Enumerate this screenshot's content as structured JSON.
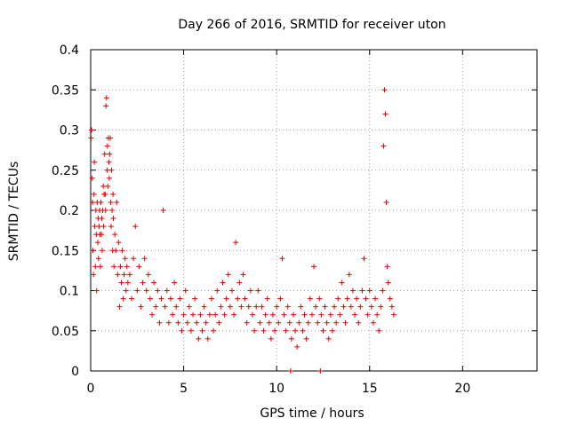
{
  "chart_data": {
    "type": "scatter",
    "title": "Day 266 of 2016, SRMTID for receiver uton",
    "xlabel": "GPS time / hours",
    "ylabel": "SRMTID / TECUs",
    "xlim": [
      0,
      24
    ],
    "ylim": [
      0,
      0.4
    ],
    "xticks": [
      0,
      5,
      10,
      15,
      20
    ],
    "xtick_labels": [
      "0",
      "5",
      "10",
      "15",
      "20"
    ],
    "yticks": [
      0,
      0.05,
      0.1,
      0.15,
      0.2,
      0.25,
      0.3,
      0.35,
      0.4
    ],
    "ytick_labels": [
      "0",
      "0.05",
      "0.1",
      "0.15",
      "0.2",
      "0.25",
      "0.3",
      "0.35",
      "0.4"
    ],
    "grid": true,
    "marker": "+",
    "color": "#e00000",
    "series": [
      {
        "name": "SRMTID",
        "points": [
          [
            0.02,
            0.29
          ],
          [
            0.05,
            0.3
          ],
          [
            0.08,
            0.24
          ],
          [
            0.1,
            0.21
          ],
          [
            0.12,
            0.15
          ],
          [
            0.15,
            0.12
          ],
          [
            0.18,
            0.22
          ],
          [
            0.2,
            0.26
          ],
          [
            0.22,
            0.18
          ],
          [
            0.25,
            0.13
          ],
          [
            0.28,
            0.2
          ],
          [
            0.3,
            0.17
          ],
          [
            0.32,
            0.1
          ],
          [
            0.35,
            0.21
          ],
          [
            0.38,
            0.16
          ],
          [
            0.4,
            0.19
          ],
          [
            0.42,
            0.14
          ],
          [
            0.45,
            0.18
          ],
          [
            0.48,
            0.2
          ],
          [
            0.5,
            0.17
          ],
          [
            0.52,
            0.13
          ],
          [
            0.55,
            0.21
          ],
          [
            0.58,
            0.17
          ],
          [
            0.6,
            0.19
          ],
          [
            0.62,
            0.15
          ],
          [
            0.65,
            0.2
          ],
          [
            0.68,
            0.23
          ],
          [
            0.7,
            0.18
          ],
          [
            0.72,
            0.22
          ],
          [
            0.75,
            0.27
          ],
          [
            0.78,
            0.22
          ],
          [
            0.8,
            0.2
          ],
          [
            0.82,
            0.33
          ],
          [
            0.85,
            0.34
          ],
          [
            0.88,
            0.25
          ],
          [
            0.9,
            0.28
          ],
          [
            0.92,
            0.23
          ],
          [
            0.95,
            0.29
          ],
          [
            0.98,
            0.26
          ],
          [
            1.0,
            0.24
          ],
          [
            1.02,
            0.27
          ],
          [
            1.05,
            0.29
          ],
          [
            1.08,
            0.21
          ],
          [
            1.1,
            0.18
          ],
          [
            1.12,
            0.25
          ],
          [
            1.15,
            0.2
          ],
          [
            1.18,
            0.15
          ],
          [
            1.2,
            0.22
          ],
          [
            1.22,
            0.19
          ],
          [
            1.25,
            0.13
          ],
          [
            1.3,
            0.17
          ],
          [
            1.35,
            0.15
          ],
          [
            1.4,
            0.21
          ],
          [
            1.45,
            0.12
          ],
          [
            1.5,
            0.16
          ],
          [
            1.55,
            0.08
          ],
          [
            1.6,
            0.13
          ],
          [
            1.65,
            0.11
          ],
          [
            1.7,
            0.15
          ],
          [
            1.75,
            0.09
          ],
          [
            1.8,
            0.12
          ],
          [
            1.85,
            0.14
          ],
          [
            1.9,
            0.1
          ],
          [
            1.95,
            0.13
          ],
          [
            2.0,
            0.11
          ],
          [
            2.1,
            0.12
          ],
          [
            2.2,
            0.09
          ],
          [
            2.3,
            0.14
          ],
          [
            2.4,
            0.18
          ],
          [
            2.5,
            0.1
          ],
          [
            2.6,
            0.13
          ],
          [
            2.7,
            0.08
          ],
          [
            2.8,
            0.11
          ],
          [
            2.9,
            0.14
          ],
          [
            3.0,
            0.1
          ],
          [
            3.1,
            0.12
          ],
          [
            3.2,
            0.09
          ],
          [
            3.3,
            0.07
          ],
          [
            3.4,
            0.11
          ],
          [
            3.5,
            0.08
          ],
          [
            3.6,
            0.1
          ],
          [
            3.7,
            0.06
          ],
          [
            3.8,
            0.09
          ],
          [
            3.9,
            0.2
          ],
          [
            4.0,
            0.08
          ],
          [
            4.1,
            0.1
          ],
          [
            4.2,
            0.06
          ],
          [
            4.3,
            0.09
          ],
          [
            4.4,
            0.07
          ],
          [
            4.5,
            0.11
          ],
          [
            4.6,
            0.08
          ],
          [
            4.7,
            0.06
          ],
          [
            4.8,
            0.09
          ],
          [
            4.9,
            0.05
          ],
          [
            5.0,
            0.07
          ],
          [
            5.1,
            0.1
          ],
          [
            5.2,
            0.06
          ],
          [
            5.3,
            0.08
          ],
          [
            5.4,
            0.05
          ],
          [
            5.5,
            0.07
          ],
          [
            5.6,
            0.09
          ],
          [
            5.7,
            0.06
          ],
          [
            5.8,
            0.04
          ],
          [
            5.9,
            0.07
          ],
          [
            6.0,
            0.05
          ],
          [
            6.1,
            0.08
          ],
          [
            6.2,
            0.06
          ],
          [
            6.3,
            0.04
          ],
          [
            6.4,
            0.07
          ],
          [
            6.5,
            0.09
          ],
          [
            6.6,
            0.05
          ],
          [
            6.7,
            0.07
          ],
          [
            6.8,
            0.1
          ],
          [
            6.9,
            0.06
          ],
          [
            7.0,
            0.08
          ],
          [
            7.1,
            0.11
          ],
          [
            7.2,
            0.07
          ],
          [
            7.3,
            0.09
          ],
          [
            7.4,
            0.12
          ],
          [
            7.5,
            0.08
          ],
          [
            7.6,
            0.1
          ],
          [
            7.7,
            0.07
          ],
          [
            7.8,
            0.16
          ],
          [
            7.9,
            0.09
          ],
          [
            8.0,
            0.11
          ],
          [
            8.1,
            0.08
          ],
          [
            8.2,
            0.12
          ],
          [
            8.3,
            0.09
          ],
          [
            8.4,
            0.06
          ],
          [
            8.5,
            0.08
          ],
          [
            8.6,
            0.1
          ],
          [
            8.7,
            0.07
          ],
          [
            8.8,
            0.05
          ],
          [
            8.9,
            0.08
          ],
          [
            9.0,
            0.1
          ],
          [
            9.1,
            0.06
          ],
          [
            9.2,
            0.08
          ],
          [
            9.3,
            0.05
          ],
          [
            9.4,
            0.07
          ],
          [
            9.5,
            0.09
          ],
          [
            9.6,
            0.06
          ],
          [
            9.7,
            0.04
          ],
          [
            9.8,
            0.07
          ],
          [
            9.9,
            0.05
          ],
          [
            10.0,
            0.08
          ],
          [
            10.1,
            0.06
          ],
          [
            10.2,
            0.09
          ],
          [
            10.3,
            0.14
          ],
          [
            10.4,
            0.07
          ],
          [
            10.5,
            0.05
          ],
          [
            10.6,
            0.08
          ],
          [
            10.7,
            0.06
          ],
          [
            10.8,
            0.04
          ],
          [
            10.9,
            0.07
          ],
          [
            11.0,
            0.05
          ],
          [
            11.1,
            0.03
          ],
          [
            11.2,
            0.06
          ],
          [
            11.3,
            0.08
          ],
          [
            11.4,
            0.05
          ],
          [
            11.5,
            0.07
          ],
          [
            11.6,
            0.04
          ],
          [
            11.7,
            0.06
          ],
          [
            11.8,
            0.09
          ],
          [
            11.9,
            0.07
          ],
          [
            12.0,
            0.13
          ],
          [
            12.1,
            0.08
          ],
          [
            12.2,
            0.06
          ],
          [
            12.3,
            0.09
          ],
          [
            12.4,
            0.07
          ],
          [
            12.5,
            0.05
          ],
          [
            12.6,
            0.08
          ],
          [
            12.7,
            0.06
          ],
          [
            12.8,
            0.04
          ],
          [
            12.9,
            0.07
          ],
          [
            13.0,
            0.05
          ],
          [
            13.1,
            0.08
          ],
          [
            13.2,
            0.06
          ],
          [
            13.3,
            0.09
          ],
          [
            13.4,
            0.07
          ],
          [
            13.5,
            0.11
          ],
          [
            13.6,
            0.08
          ],
          [
            13.7,
            0.06
          ],
          [
            13.8,
            0.09
          ],
          [
            13.9,
            0.12
          ],
          [
            14.0,
            0.08
          ],
          [
            14.1,
            0.1
          ],
          [
            14.2,
            0.07
          ],
          [
            14.3,
            0.09
          ],
          [
            14.4,
            0.06
          ],
          [
            14.5,
            0.08
          ],
          [
            14.6,
            0.1
          ],
          [
            14.7,
            0.14
          ],
          [
            14.8,
            0.09
          ],
          [
            14.9,
            0.07
          ],
          [
            15.0,
            0.1
          ],
          [
            15.1,
            0.08
          ],
          [
            15.2,
            0.06
          ],
          [
            15.3,
            0.09
          ],
          [
            15.4,
            0.07
          ],
          [
            15.5,
            0.05
          ],
          [
            15.6,
            0.08
          ],
          [
            15.7,
            0.1
          ],
          [
            15.75,
            0.28
          ],
          [
            15.8,
            0.35
          ],
          [
            15.85,
            0.32
          ],
          [
            15.9,
            0.21
          ],
          [
            15.95,
            0.13
          ],
          [
            16.0,
            0.11
          ],
          [
            16.1,
            0.09
          ],
          [
            16.2,
            0.08
          ],
          [
            16.3,
            0.07
          ],
          [
            10.75,
            0.0
          ],
          [
            12.35,
            0.0
          ]
        ]
      }
    ]
  }
}
